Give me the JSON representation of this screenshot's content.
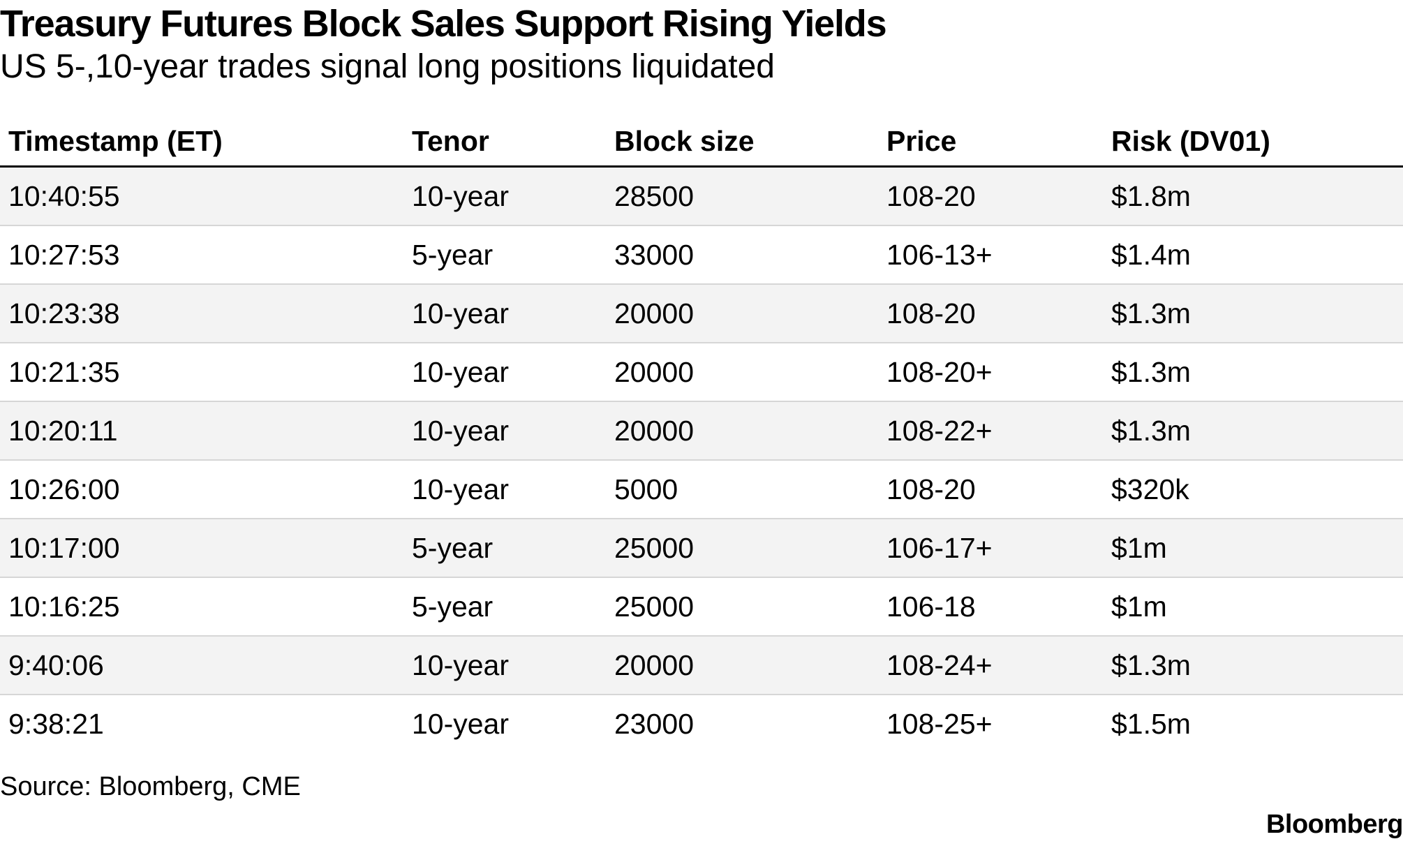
{
  "title": "Treasury Futures Block Sales Support Rising Yields",
  "subtitle": "US 5-,10-year trades signal long positions liquidated",
  "source": "Source: Bloomberg, CME",
  "logo": "Bloomberg",
  "colors": {
    "header_rule": "#000000",
    "row_stripe": "#f3f3f3",
    "row_divider": "#d6d6d6"
  },
  "chart_data": {
    "type": "table",
    "title": "Treasury Futures Block Sales Support Rising Yields",
    "subtitle": "US 5-,10-year trades signal long positions liquidated",
    "columns": [
      "Timestamp (ET)",
      "Tenor",
      "Block size",
      "Price",
      "Risk (DV01)"
    ],
    "rows": [
      [
        "10:40:55",
        "10-year",
        "28500",
        "108-20",
        "$1.8m"
      ],
      [
        "10:27:53",
        "5-year",
        "33000",
        "106-13+",
        "$1.4m"
      ],
      [
        "10:23:38",
        "10-year",
        "20000",
        "108-20",
        "$1.3m"
      ],
      [
        "10:21:35",
        "10-year",
        "20000",
        "108-20+",
        "$1.3m"
      ],
      [
        "10:20:11",
        "10-year",
        "20000",
        "108-22+",
        "$1.3m"
      ],
      [
        "10:26:00",
        "10-year",
        "5000",
        "108-20",
        "$320k"
      ],
      [
        "10:17:00",
        "5-year",
        "25000",
        "106-17+",
        "$1m"
      ],
      [
        "10:16:25",
        "5-year",
        "25000",
        "106-18",
        "$1m"
      ],
      [
        "9:40:06",
        "10-year",
        "20000",
        "108-24+",
        "$1.3m"
      ],
      [
        "9:38:21",
        "10-year",
        "23000",
        "108-25+",
        "$1.5m"
      ]
    ],
    "source": "Source: Bloomberg, CME"
  }
}
